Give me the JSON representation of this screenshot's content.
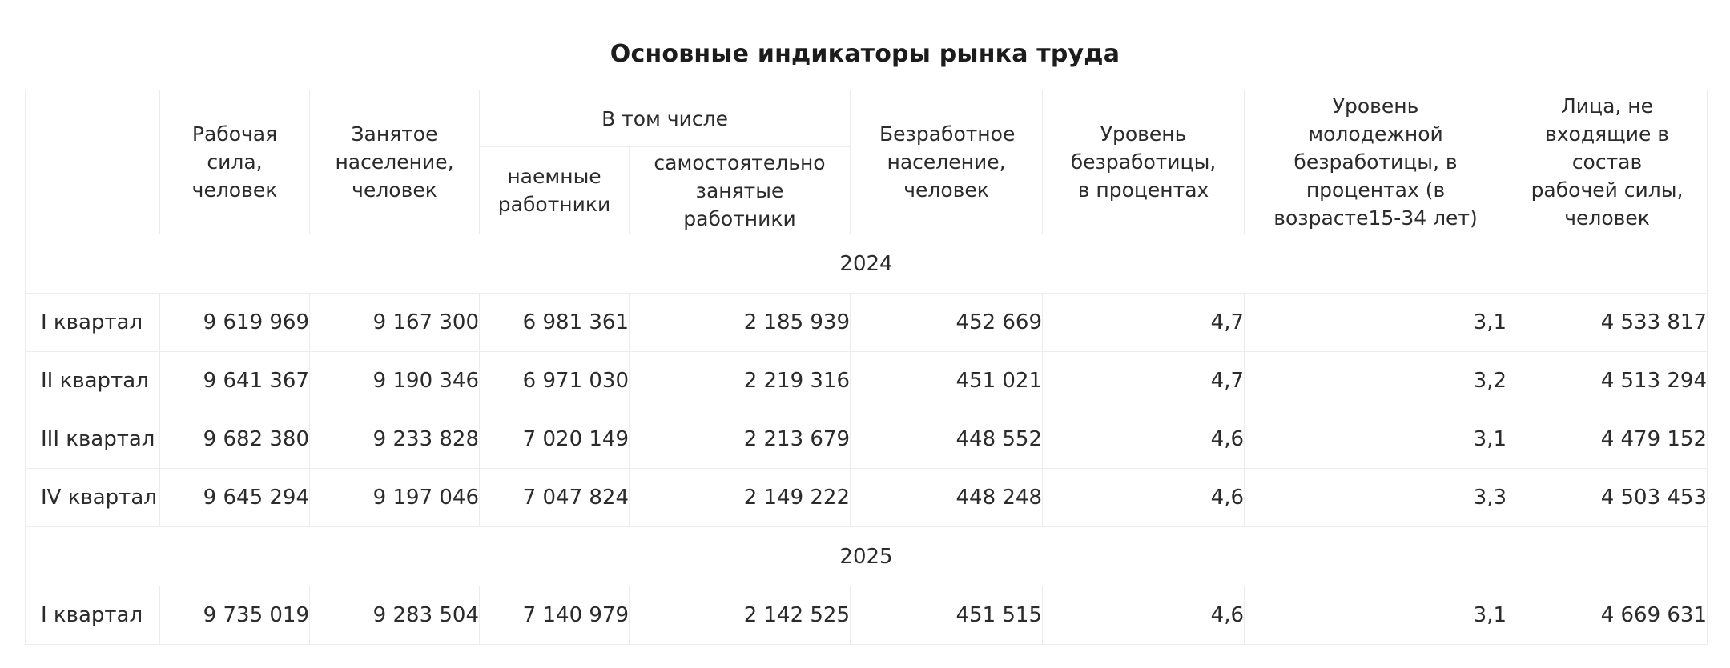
{
  "title": "Основные индикаторы рынка труда",
  "headers": {
    "labor_force": "Рабочая сила, человек",
    "employed": "Занятое население, человек",
    "including": "В том числе",
    "hired": "наемные работники",
    "self_employed": "самостоятельно занятые работники",
    "unemployed": "Безработное население, человек",
    "unemployment_rate": "Уровень безработицы, в процентах",
    "youth_unemployment": "Уровень молодежной безработицы, в процентах (в возрасте15-34 лет)",
    "outside_labor": "Лица, не входящие в состав рабочей силы, человек"
  },
  "years": [
    {
      "year": "2024",
      "rows": [
        {
          "quarter": "I квартал",
          "labor_force": "9 619 969",
          "employed": "9 167 300",
          "hired": "6 981 361",
          "self_employed": "2 185 939",
          "unemployed": "452 669",
          "unemployment_rate": "4,7",
          "youth_unemployment": "3,1",
          "outside_labor": "4 533 817"
        },
        {
          "quarter": "II квартал",
          "labor_force": "9 641 367",
          "employed": "9 190 346",
          "hired": "6 971 030",
          "self_employed": "2 219 316",
          "unemployed": "451 021",
          "unemployment_rate": "4,7",
          "youth_unemployment": "3,2",
          "outside_labor": "4 513 294"
        },
        {
          "quarter": "III квартал",
          "labor_force": "9 682 380",
          "employed": "9 233 828",
          "hired": "7 020 149",
          "self_employed": "2 213 679",
          "unemployed": "448 552",
          "unemployment_rate": "4,6",
          "youth_unemployment": "3,1",
          "outside_labor": "4 479 152"
        },
        {
          "quarter": "IV квартал",
          "labor_force": "9 645 294",
          "employed": "9 197 046",
          "hired": "7 047 824",
          "self_employed": "2 149 222",
          "unemployed": "448 248",
          "unemployment_rate": "4,6",
          "youth_unemployment": "3,3",
          "outside_labor": "4 503 453"
        }
      ]
    },
    {
      "year": "2025",
      "rows": [
        {
          "quarter": "I квартал",
          "labor_force": "9 735 019",
          "employed": "9 283 504",
          "hired": "7 140 979",
          "self_employed": "2 142 525",
          "unemployed": "451 515",
          "unemployment_rate": "4,6",
          "youth_unemployment": "3,1",
          "outside_labor": "4 669 631"
        }
      ]
    }
  ]
}
